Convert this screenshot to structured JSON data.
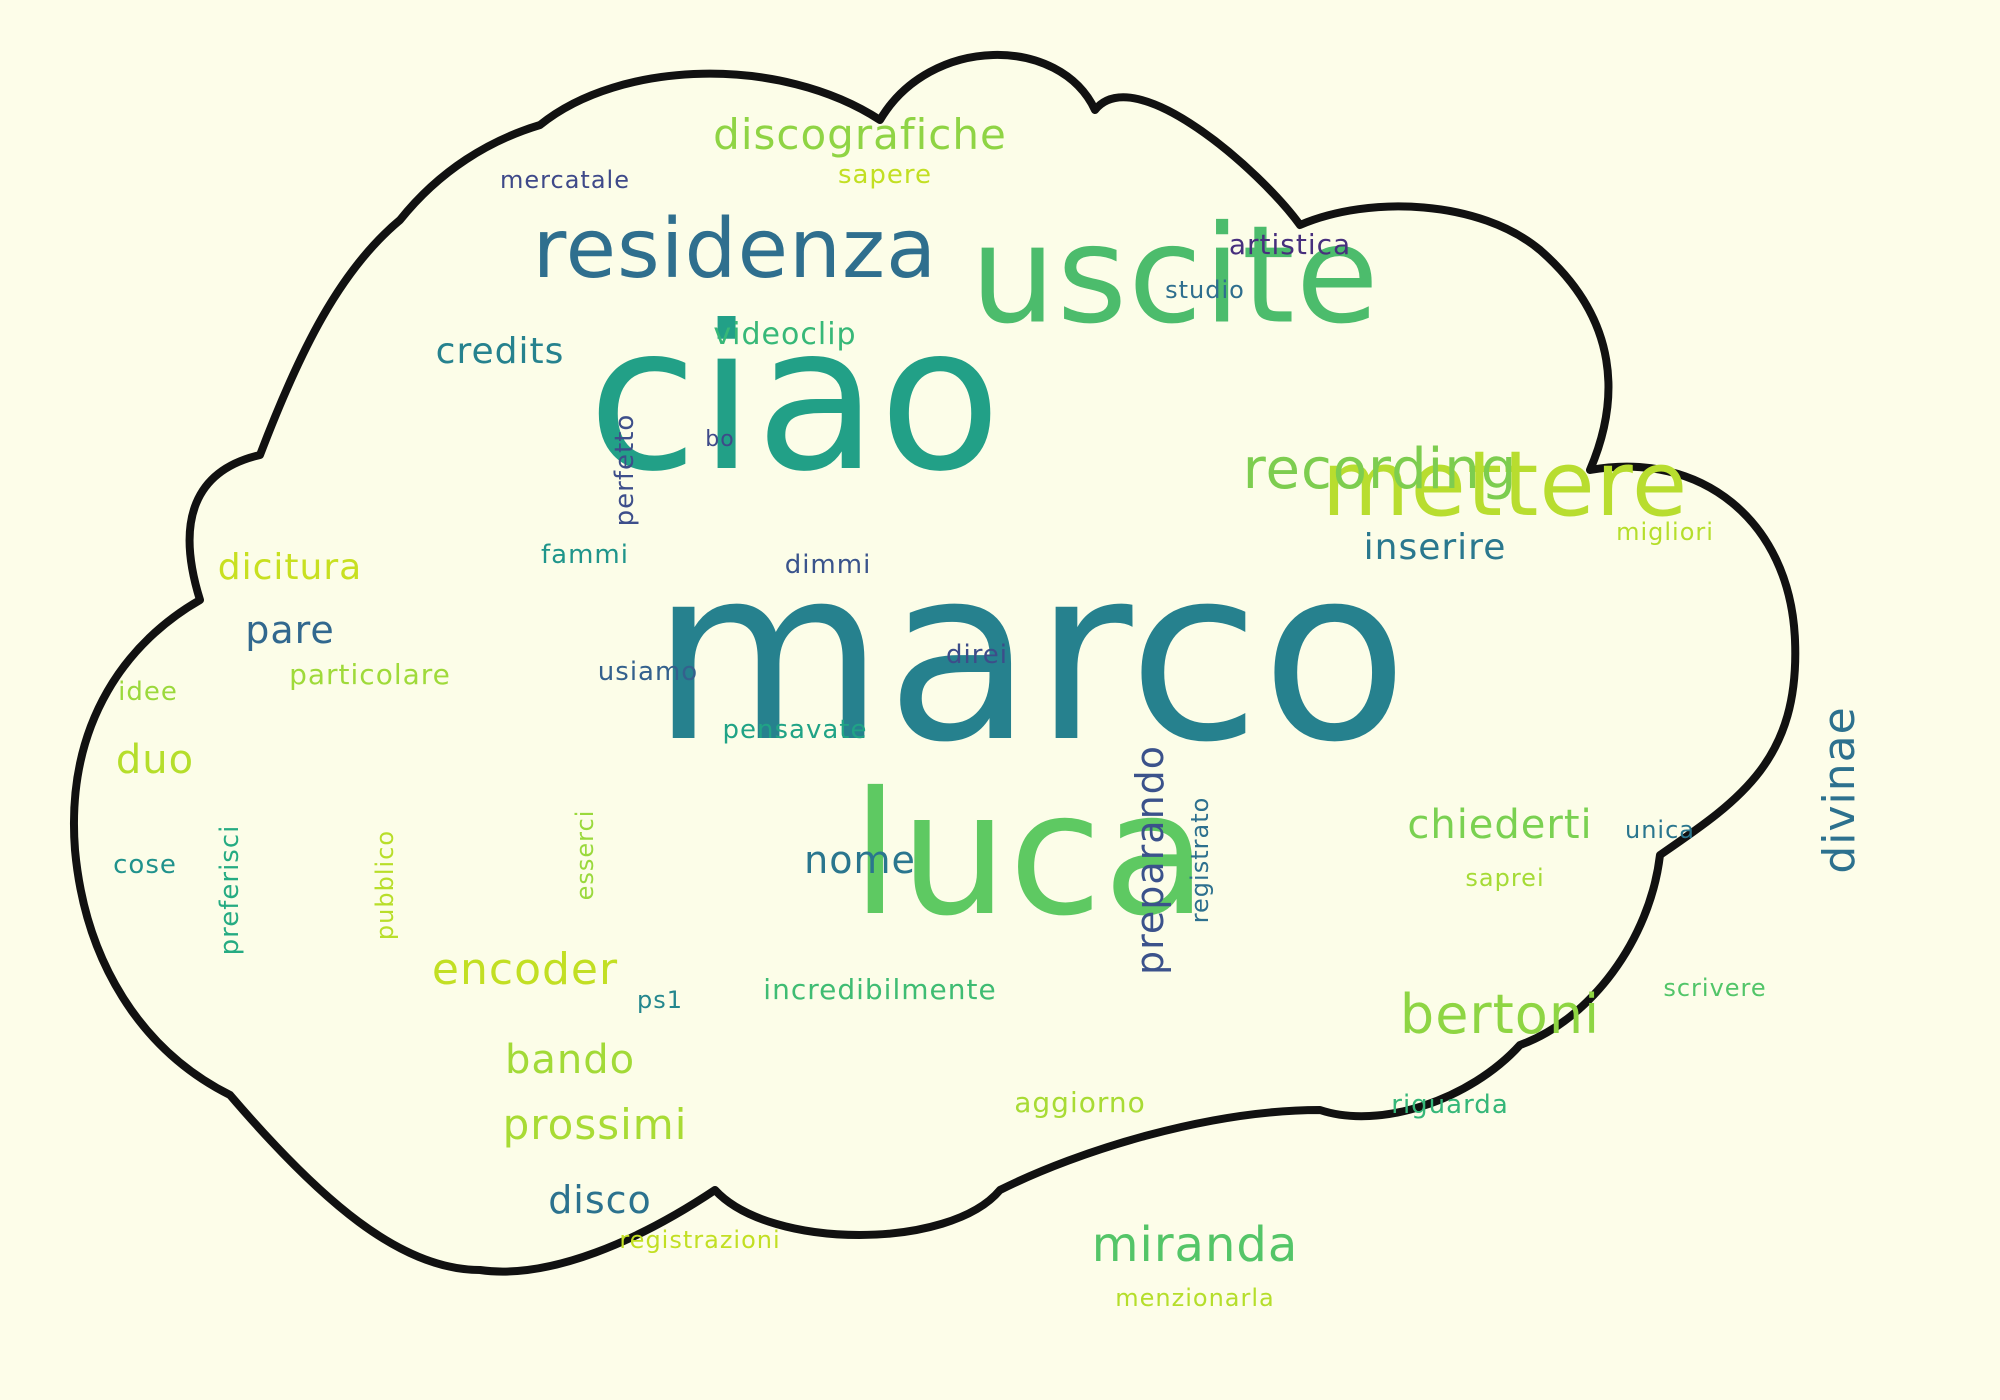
{
  "colors": {
    "background": "#fdfde9",
    "cloud_fill": "#fcfde8",
    "cloud_outline": "#111111"
  },
  "words": [
    {
      "text": "marco",
      "color": "#26818e"
    },
    {
      "text": "ciao",
      "color": "#22a087"
    },
    {
      "text": "luca",
      "color": "#5ec962"
    },
    {
      "text": "uscite",
      "color": "#4cbc6c"
    },
    {
      "text": "mettere",
      "color": "#b8dd2f"
    },
    {
      "text": "residenza",
      "color": "#2f6f8e"
    },
    {
      "text": "recording",
      "color": "#7dcd4f"
    },
    {
      "text": "discografiche",
      "color": "#8fd444"
    },
    {
      "text": "bertoni",
      "color": "#8ed543"
    },
    {
      "text": "miranda",
      "color": "#54c568"
    },
    {
      "text": "prossimi",
      "color": "#a8db34"
    },
    {
      "text": "encoder",
      "color": "#c2df23"
    },
    {
      "text": "bando",
      "color": "#a2da37"
    },
    {
      "text": "divinae",
      "color": "#2d718e"
    },
    {
      "text": "chiederti",
      "color": "#7ad151"
    },
    {
      "text": "disco",
      "color": "#2c728e"
    },
    {
      "text": "preparando",
      "color": "#3b528b"
    },
    {
      "text": "credits",
      "color": "#26828e"
    },
    {
      "text": "inserire",
      "color": "#2a788e"
    },
    {
      "text": "dicitura",
      "color": "#c8e020"
    },
    {
      "text": "pare",
      "color": "#31688e"
    },
    {
      "text": "nome",
      "color": "#2a768e"
    },
    {
      "text": "duo",
      "color": "#b5de2b"
    },
    {
      "text": "videoclip",
      "color": "#37b878"
    },
    {
      "text": "incredibilmente",
      "color": "#3fbc73"
    },
    {
      "text": "artistica",
      "color": "#472f7d"
    },
    {
      "text": "studio",
      "color": "#2e6e8e"
    },
    {
      "text": "mercatale",
      "color": "#3e4989"
    },
    {
      "text": "sapere",
      "color": "#c2df23"
    },
    {
      "text": "perfetto",
      "color": "#3d4e8a"
    },
    {
      "text": "bo",
      "color": "#3e4a89"
    },
    {
      "text": "fammi",
      "color": "#1f958b"
    },
    {
      "text": "dimmi",
      "color": "#3a548c"
    },
    {
      "text": "usiamo",
      "color": "#34618d"
    },
    {
      "text": "direi",
      "color": "#3d4d8a"
    },
    {
      "text": "particolare",
      "color": "#9fda3a"
    },
    {
      "text": "idee",
      "color": "#9bd93c"
    },
    {
      "text": "pensavate",
      "color": "#20a386"
    },
    {
      "text": "preferisci",
      "color": "#25ab82"
    },
    {
      "text": "cose",
      "color": "#20928c"
    },
    {
      "text": "pubblico",
      "color": "#b8de29"
    },
    {
      "text": "esserci",
      "color": "#9ad93c"
    },
    {
      "text": "registrato",
      "color": "#2d708e"
    },
    {
      "text": "unica",
      "color": "#2a768e"
    },
    {
      "text": "saprei",
      "color": "#a5db36"
    },
    {
      "text": "scrivere",
      "color": "#52c569"
    },
    {
      "text": "migliori",
      "color": "#b5de2b"
    },
    {
      "text": "ps1",
      "color": "#24878e"
    },
    {
      "text": "aggiorno",
      "color": "#a8db34"
    },
    {
      "text": "riguarda",
      "color": "#35b779"
    },
    {
      "text": "registrazioni",
      "color": "#c2df23"
    },
    {
      "text": "menzionarla",
      "color": "#b5de2b"
    }
  ]
}
